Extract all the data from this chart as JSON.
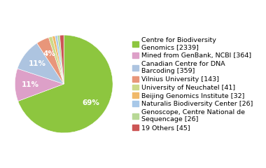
{
  "labels": [
    "Centre for Biodiversity\nGenomics [2339]",
    "Mined from GenBank, NCBI [364]",
    "Canadian Centre for DNA\nBarcoding [359]",
    "Vilnius University [143]",
    "University of Neuchatel [41]",
    "Beijing Genomics Institute [32]",
    "Naturalis Biodiversity Center [26]",
    "Genoscope, Centre National de\nSequencage [26]",
    "19 Others [45]"
  ],
  "values": [
    2339,
    364,
    359,
    143,
    41,
    32,
    26,
    26,
    45
  ],
  "colors": [
    "#8dc63f",
    "#dda0c8",
    "#adc4e0",
    "#e8967a",
    "#cdd98a",
    "#f0b96a",
    "#a8c8e8",
    "#b8d896",
    "#cc5555"
  ],
  "startangle": 90,
  "legend_fontsize": 6.8,
  "pct_fontsize": 7.5,
  "background_color": "#ffffff"
}
